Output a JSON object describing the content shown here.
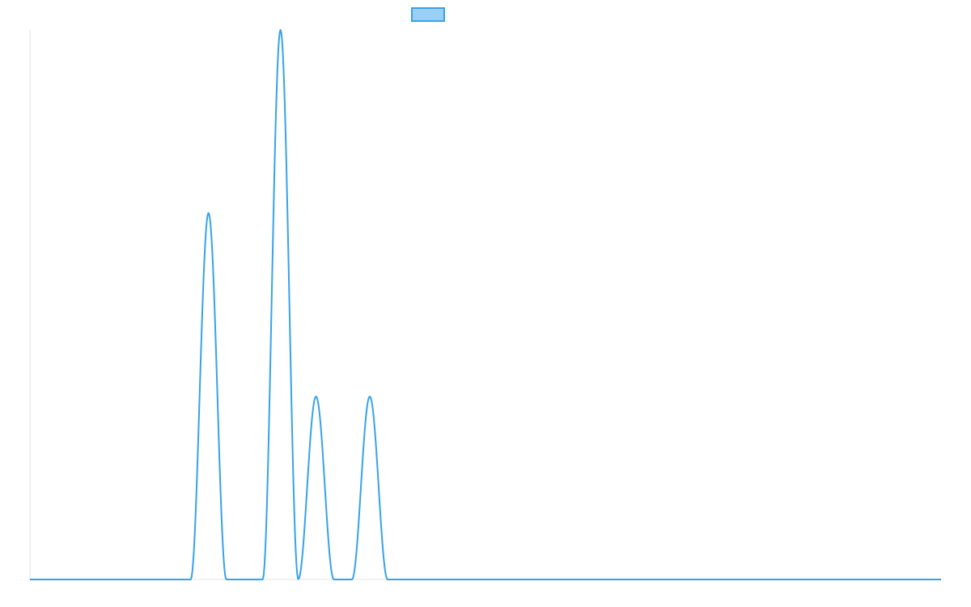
{
  "colors": {
    "line": "#36a2eb",
    "fill": "#9ad0f5",
    "axis": "#e5e5e5"
  },
  "chart_data": {
    "type": "line",
    "title": "",
    "xlabel": "",
    "ylabel": "",
    "grid": false,
    "legend": "top",
    "xlim": [
      0,
      1
    ],
    "ylim": [
      0,
      1
    ],
    "series": [
      {
        "name": "",
        "peaks": [
          {
            "center": 0.196,
            "height": 0.667,
            "halfwidth": 0.0196
          },
          {
            "center": 0.275,
            "height": 1.0,
            "halfwidth": 0.0196
          },
          {
            "center": 0.314,
            "height": 0.333,
            "halfwidth": 0.0196
          },
          {
            "center": 0.373,
            "height": 0.333,
            "halfwidth": 0.0196
          }
        ]
      }
    ]
  }
}
